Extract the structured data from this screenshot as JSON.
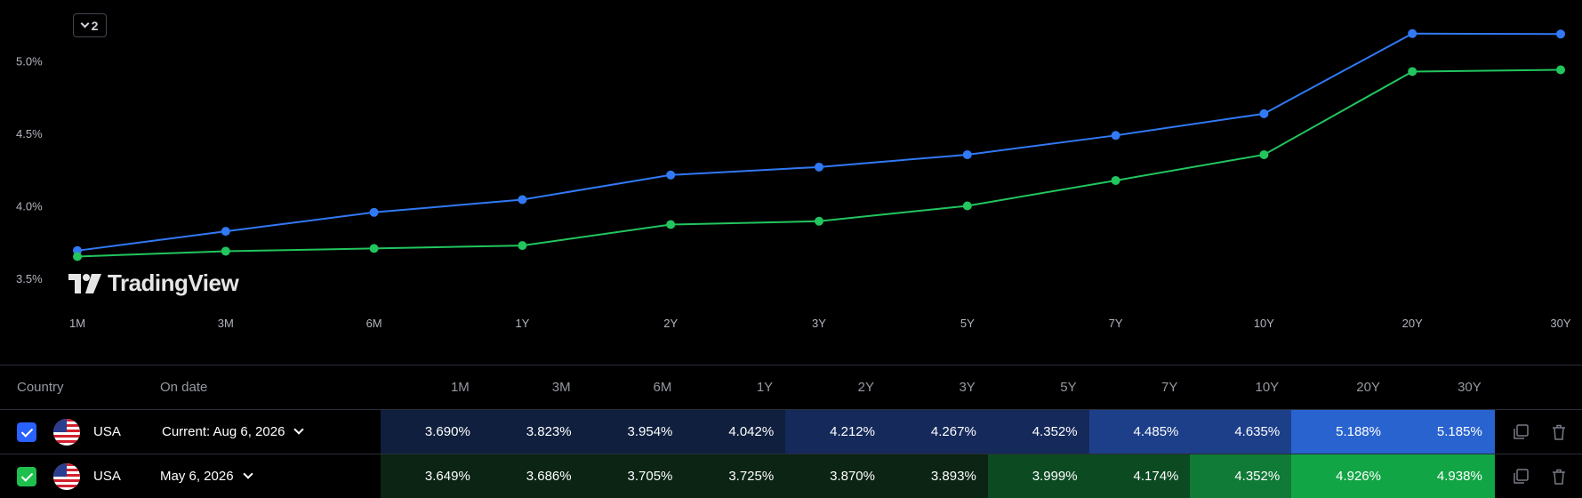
{
  "colors": {
    "blue": "#2962ff",
    "blue_line": "#3179f5",
    "green": "#1fbf4e",
    "green_line": "#22c55e"
  },
  "toggle": {
    "count": "2"
  },
  "watermark": {
    "text": "TradingView"
  },
  "chart_data": {
    "type": "line",
    "categories": [
      "1M",
      "3M",
      "6M",
      "1Y",
      "2Y",
      "3Y",
      "5Y",
      "7Y",
      "10Y",
      "20Y",
      "30Y"
    ],
    "yticks": [
      "3.5%",
      "4.0%",
      "4.5%",
      "5.0%"
    ],
    "ytick_values": [
      3.5,
      4.0,
      4.5,
      5.0
    ],
    "ylim": [
      3.21,
      5.42
    ],
    "grid": false,
    "series": [
      {
        "values": [
          3.69,
          3.823,
          3.954,
          4.042,
          4.212,
          4.267,
          4.352,
          4.485,
          4.635,
          5.188,
          5.185
        ]
      },
      {
        "values": [
          3.649,
          3.686,
          3.705,
          3.725,
          3.87,
          3.893,
          3.999,
          4.174,
          4.352,
          4.926,
          4.938
        ]
      }
    ]
  },
  "table": {
    "headers": {
      "country": "Country",
      "on_date": "On date",
      "tenors": [
        "1M",
        "3M",
        "6M",
        "1Y",
        "2Y",
        "3Y",
        "5Y",
        "7Y",
        "10Y",
        "20Y",
        "30Y"
      ]
    },
    "rows": [
      {
        "country": "USA",
        "date": "Current: Aug 6, 2026",
        "values": [
          "3.690%",
          "3.823%",
          "3.954%",
          "4.042%",
          "4.212%",
          "4.267%",
          "4.352%",
          "4.485%",
          "4.635%",
          "5.188%",
          "5.185%"
        ],
        "cell_colors": [
          "#0f1f3d",
          "#0f1f3d",
          "#0f1f3d",
          "#0f1f3d",
          "#15295a",
          "#15295a",
          "#15295a",
          "#1d3f8a",
          "#1d3f8a",
          "#2863cf",
          "#2863cf"
        ],
        "checkbox_color": "#2962ff"
      },
      {
        "country": "USA",
        "date": "May 6, 2026",
        "values": [
          "3.649%",
          "3.686%",
          "3.705%",
          "3.725%",
          "3.870%",
          "3.893%",
          "3.999%",
          "4.174%",
          "4.352%",
          "4.926%",
          "4.938%"
        ],
        "cell_colors": [
          "#0b2414",
          "#0b2414",
          "#0b2414",
          "#0b2414",
          "#0b2414",
          "#0b2414",
          "#0c4a22",
          "#0c4a22",
          "#107a37",
          "#12a545",
          "#12a545"
        ],
        "checkbox_color": "#1fbf4e"
      }
    ]
  }
}
